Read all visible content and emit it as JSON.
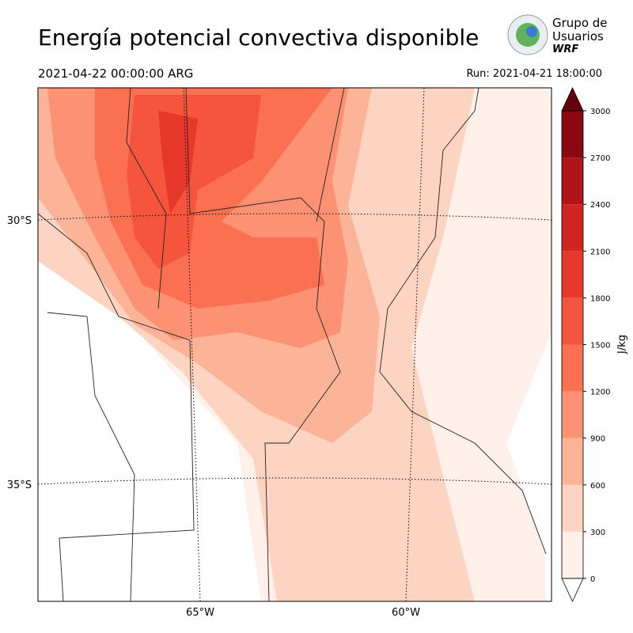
{
  "header": {
    "title": "Energía potencial convectiva disponible",
    "valid": "2021-04-22 00:00:00 ARG",
    "run": "Run: 2021-04-21 18:00:00"
  },
  "logo": {
    "lines": [
      "Grupo de",
      "Usuarios",
      "WRF"
    ]
  },
  "map": {
    "lat_labels": [
      "30°S",
      "35°S"
    ],
    "lon_labels": [
      "65°W",
      "60°W"
    ]
  },
  "colorbar": {
    "label": "J/kg",
    "ticks": [
      0,
      300,
      600,
      900,
      1200,
      1500,
      1800,
      2100,
      2400,
      2700,
      3000
    ],
    "colors": [
      "#fff0e9",
      "#fdd4c2",
      "#fcb499",
      "#fc9273",
      "#fb7050",
      "#f5553c",
      "#e8372b",
      "#d12320",
      "#b01419",
      "#8a0812"
    ],
    "over_color": "#67000d",
    "under_color": "#ffffff"
  }
}
